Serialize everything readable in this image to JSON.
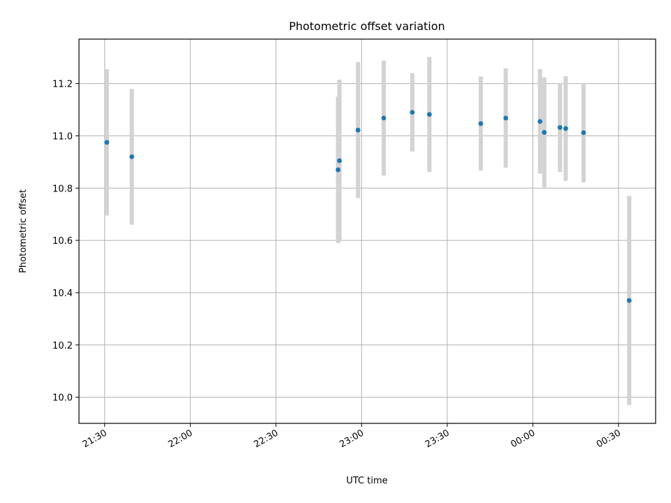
{
  "chart_data": {
    "type": "scatter",
    "title": "Photometric offset variation",
    "xlabel": "UTC time",
    "ylabel": "Photometric offset",
    "grid": true,
    "x_axis": "time",
    "xlim": [
      "21:21",
      "00:43"
    ],
    "ylim": [
      9.9,
      11.37
    ],
    "xticks": [
      "21:30",
      "22:00",
      "22:30",
      "23:00",
      "23:30",
      "00:00",
      "00:30"
    ],
    "yticks": [
      10.0,
      10.2,
      10.4,
      10.6,
      10.8,
      11.0,
      11.2
    ],
    "colors": {
      "points": "#1f77b4",
      "errorbars": "#d3d3d3"
    },
    "points": [
      {
        "t": "21:30:45",
        "y": 10.975,
        "err": 0.28
      },
      {
        "t": "21:39:30",
        "y": 10.92,
        "err": 0.26
      },
      {
        "t": "22:51:45",
        "y": 10.87,
        "err": 0.28
      },
      {
        "t": "22:52:15",
        "y": 10.905,
        "err": 0.31
      },
      {
        "t": "22:58:45",
        "y": 11.022,
        "err": 0.26
      },
      {
        "t": "23:07:45",
        "y": 11.068,
        "err": 0.22
      },
      {
        "t": "23:17:45",
        "y": 11.09,
        "err": 0.15
      },
      {
        "t": "23:23:45",
        "y": 11.082,
        "err": 0.22
      },
      {
        "t": "23:41:45",
        "y": 11.047,
        "err": 0.18
      },
      {
        "t": "23:50:30",
        "y": 11.068,
        "err": 0.19
      },
      {
        "t": "00:02:30",
        "y": 11.055,
        "err": 0.2
      },
      {
        "t": "00:04:00",
        "y": 11.013,
        "err": 0.21
      },
      {
        "t": "00:09:30",
        "y": 11.032,
        "err": 0.17
      },
      {
        "t": "00:11:30",
        "y": 11.028,
        "err": 0.2
      },
      {
        "t": "00:17:45",
        "y": 11.012,
        "err": 0.19
      },
      {
        "t": "00:33:45",
        "y": 10.37,
        "err": 0.4
      }
    ]
  }
}
